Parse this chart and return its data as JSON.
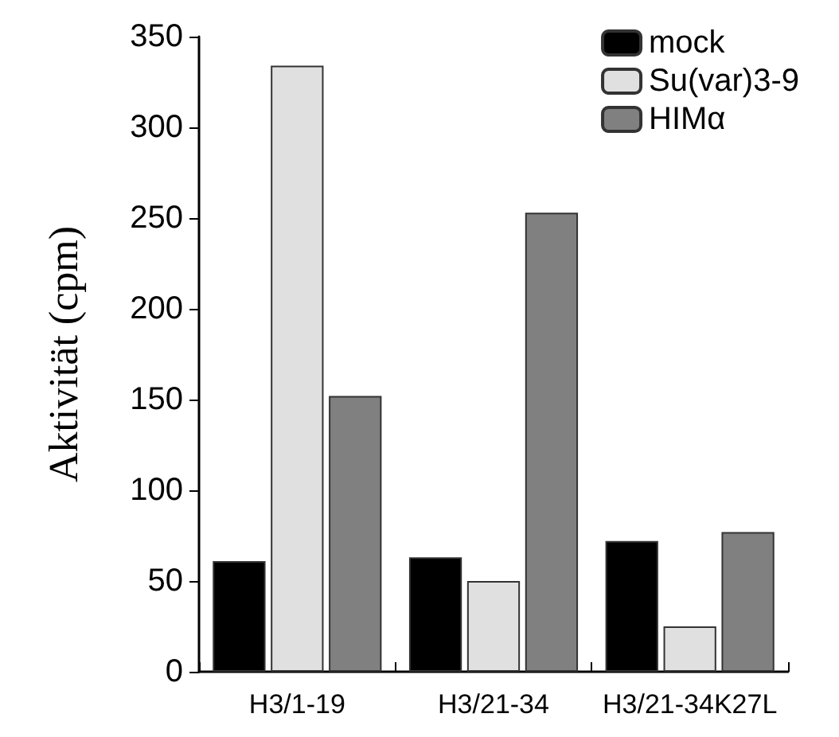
{
  "chart_data": {
    "type": "bar",
    "ylabel": "Aktivität (cpm)",
    "categories": [
      "H3/1-19",
      "H3/21-34",
      "H3/21-34K27L"
    ],
    "series": [
      {
        "name": "mock",
        "color": "#000000",
        "values": [
          61,
          63,
          72
        ]
      },
      {
        "name": "Su(var)3-9",
        "color": "#e0e0e0",
        "values": [
          334,
          50,
          25
        ]
      },
      {
        "name": "HIMα",
        "color": "#808080",
        "values": [
          152,
          253,
          77
        ]
      }
    ],
    "ylim": [
      0,
      350
    ],
    "yticks": [
      0,
      50,
      100,
      150,
      200,
      250,
      300,
      350
    ],
    "grid": false,
    "legend": "top right"
  }
}
